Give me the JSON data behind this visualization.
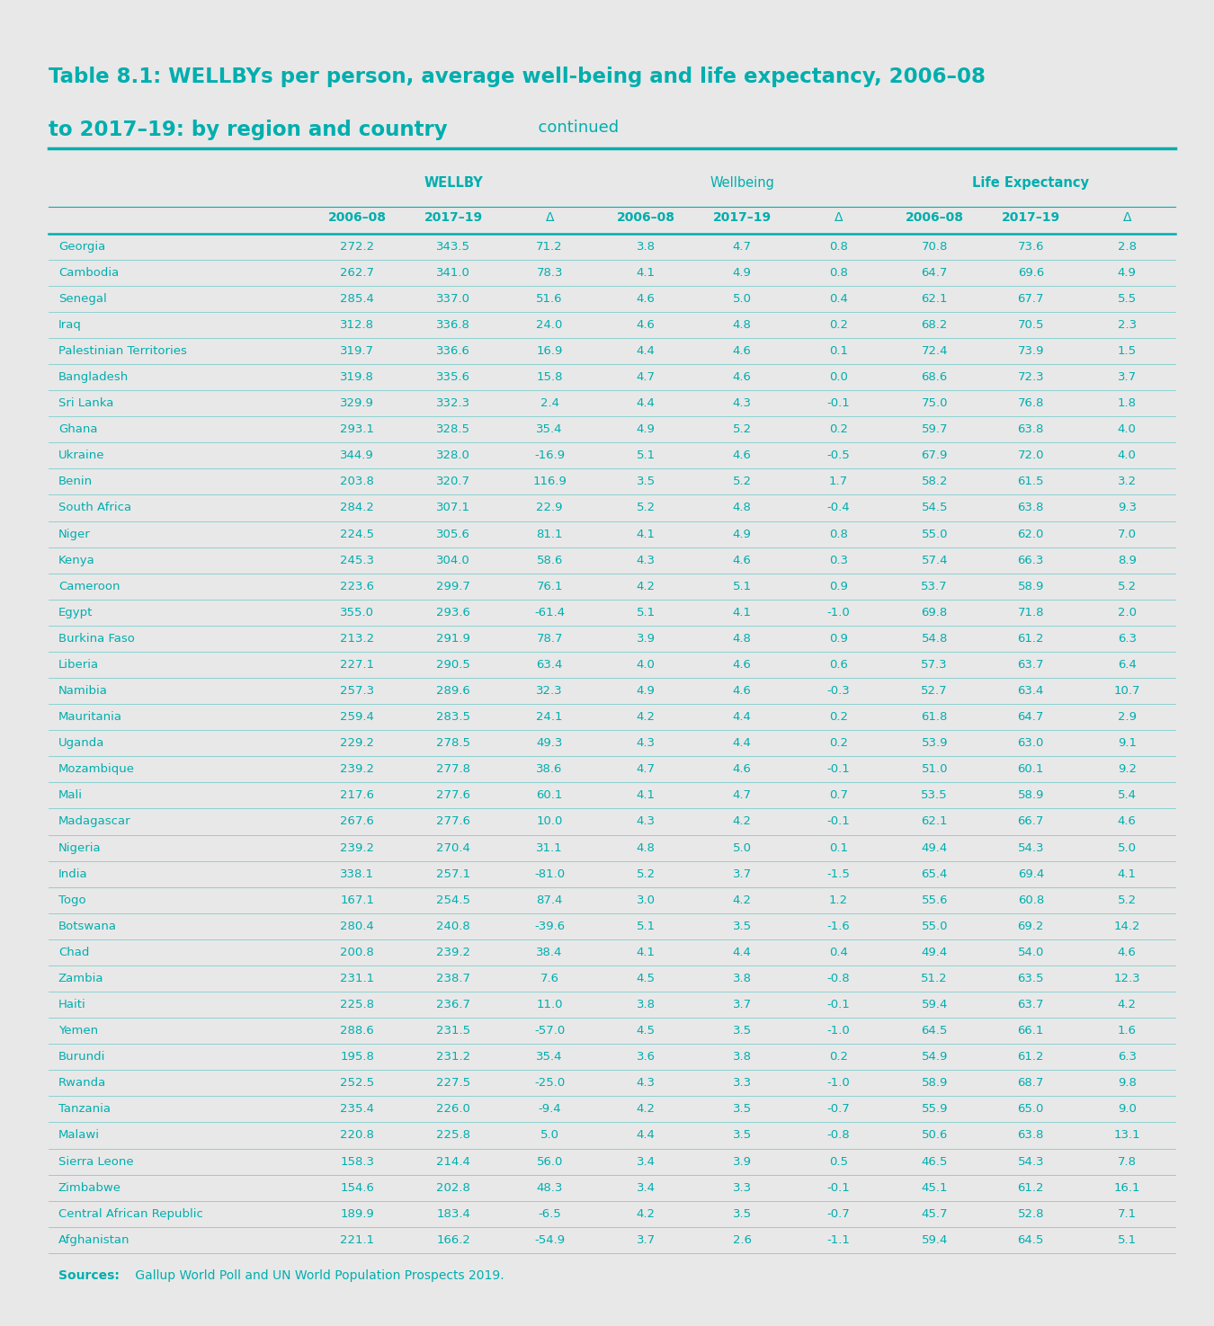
{
  "title_bold": "Table 8.1: WELLBYs per person, average well-being and life expectancy, 2006–08",
  "title_bold2": "to 2017–19: by region and country",
  "title_light": "  continued",
  "background_color": "#e8e8e8",
  "white_color": "#ffffff",
  "teal_color": "#00AEAE",
  "source_bold": "Sources:",
  "source_text": " Gallup World Poll and UN World Population Prospects 2019.",
  "rows": [
    [
      "Georgia",
      "272.2",
      "343.5",
      "71.2",
      "3.8",
      "4.7",
      "0.8",
      "70.8",
      "73.6",
      "2.8"
    ],
    [
      "Cambodia",
      "262.7",
      "341.0",
      "78.3",
      "4.1",
      "4.9",
      "0.8",
      "64.7",
      "69.6",
      "4.9"
    ],
    [
      "Senegal",
      "285.4",
      "337.0",
      "51.6",
      "4.6",
      "5.0",
      "0.4",
      "62.1",
      "67.7",
      "5.5"
    ],
    [
      "Iraq",
      "312.8",
      "336.8",
      "24.0",
      "4.6",
      "4.8",
      "0.2",
      "68.2",
      "70.5",
      "2.3"
    ],
    [
      "Palestinian Territories",
      "319.7",
      "336.6",
      "16.9",
      "4.4",
      "4.6",
      "0.1",
      "72.4",
      "73.9",
      "1.5"
    ],
    [
      "Bangladesh",
      "319.8",
      "335.6",
      "15.8",
      "4.7",
      "4.6",
      "0.0",
      "68.6",
      "72.3",
      "3.7"
    ],
    [
      "Sri Lanka",
      "329.9",
      "332.3",
      "2.4",
      "4.4",
      "4.3",
      "-0.1",
      "75.0",
      "76.8",
      "1.8"
    ],
    [
      "Ghana",
      "293.1",
      "328.5",
      "35.4",
      "4.9",
      "5.2",
      "0.2",
      "59.7",
      "63.8",
      "4.0"
    ],
    [
      "Ukraine",
      "344.9",
      "328.0",
      "-16.9",
      "5.1",
      "4.6",
      "-0.5",
      "67.9",
      "72.0",
      "4.0"
    ],
    [
      "Benin",
      "203.8",
      "320.7",
      "116.9",
      "3.5",
      "5.2",
      "1.7",
      "58.2",
      "61.5",
      "3.2"
    ],
    [
      "South Africa",
      "284.2",
      "307.1",
      "22.9",
      "5.2",
      "4.8",
      "-0.4",
      "54.5",
      "63.8",
      "9.3"
    ],
    [
      "Niger",
      "224.5",
      "305.6",
      "81.1",
      "4.1",
      "4.9",
      "0.8",
      "55.0",
      "62.0",
      "7.0"
    ],
    [
      "Kenya",
      "245.3",
      "304.0",
      "58.6",
      "4.3",
      "4.6",
      "0.3",
      "57.4",
      "66.3",
      "8.9"
    ],
    [
      "Cameroon",
      "223.6",
      "299.7",
      "76.1",
      "4.2",
      "5.1",
      "0.9",
      "53.7",
      "58.9",
      "5.2"
    ],
    [
      "Egypt",
      "355.0",
      "293.6",
      "-61.4",
      "5.1",
      "4.1",
      "-1.0",
      "69.8",
      "71.8",
      "2.0"
    ],
    [
      "Burkina Faso",
      "213.2",
      "291.9",
      "78.7",
      "3.9",
      "4.8",
      "0.9",
      "54.8",
      "61.2",
      "6.3"
    ],
    [
      "Liberia",
      "227.1",
      "290.5",
      "63.4",
      "4.0",
      "4.6",
      "0.6",
      "57.3",
      "63.7",
      "6.4"
    ],
    [
      "Namibia",
      "257.3",
      "289.6",
      "32.3",
      "4.9",
      "4.6",
      "-0.3",
      "52.7",
      "63.4",
      "10.7"
    ],
    [
      "Mauritania",
      "259.4",
      "283.5",
      "24.1",
      "4.2",
      "4.4",
      "0.2",
      "61.8",
      "64.7",
      "2.9"
    ],
    [
      "Uganda",
      "229.2",
      "278.5",
      "49.3",
      "4.3",
      "4.4",
      "0.2",
      "53.9",
      "63.0",
      "9.1"
    ],
    [
      "Mozambique",
      "239.2",
      "277.8",
      "38.6",
      "4.7",
      "4.6",
      "-0.1",
      "51.0",
      "60.1",
      "9.2"
    ],
    [
      "Mali",
      "217.6",
      "277.6",
      "60.1",
      "4.1",
      "4.7",
      "0.7",
      "53.5",
      "58.9",
      "5.4"
    ],
    [
      "Madagascar",
      "267.6",
      "277.6",
      "10.0",
      "4.3",
      "4.2",
      "-0.1",
      "62.1",
      "66.7",
      "4.6"
    ],
    [
      "Nigeria",
      "239.2",
      "270.4",
      "31.1",
      "4.8",
      "5.0",
      "0.1",
      "49.4",
      "54.3",
      "5.0"
    ],
    [
      "India",
      "338.1",
      "257.1",
      "-81.0",
      "5.2",
      "3.7",
      "-1.5",
      "65.4",
      "69.4",
      "4.1"
    ],
    [
      "Togo",
      "167.1",
      "254.5",
      "87.4",
      "3.0",
      "4.2",
      "1.2",
      "55.6",
      "60.8",
      "5.2"
    ],
    [
      "Botswana",
      "280.4",
      "240.8",
      "-39.6",
      "5.1",
      "3.5",
      "-1.6",
      "55.0",
      "69.2",
      "14.2"
    ],
    [
      "Chad",
      "200.8",
      "239.2",
      "38.4",
      "4.1",
      "4.4",
      "0.4",
      "49.4",
      "54.0",
      "4.6"
    ],
    [
      "Zambia",
      "231.1",
      "238.7",
      "7.6",
      "4.5",
      "3.8",
      "-0.8",
      "51.2",
      "63.5",
      "12.3"
    ],
    [
      "Haiti",
      "225.8",
      "236.7",
      "11.0",
      "3.8",
      "3.7",
      "-0.1",
      "59.4",
      "63.7",
      "4.2"
    ],
    [
      "Yemen",
      "288.6",
      "231.5",
      "-57.0",
      "4.5",
      "3.5",
      "-1.0",
      "64.5",
      "66.1",
      "1.6"
    ],
    [
      "Burundi",
      "195.8",
      "231.2",
      "35.4",
      "3.6",
      "3.8",
      "0.2",
      "54.9",
      "61.2",
      "6.3"
    ],
    [
      "Rwanda",
      "252.5",
      "227.5",
      "-25.0",
      "4.3",
      "3.3",
      "-1.0",
      "58.9",
      "68.7",
      "9.8"
    ],
    [
      "Tanzania",
      "235.4",
      "226.0",
      "-9.4",
      "4.2",
      "3.5",
      "-0.7",
      "55.9",
      "65.0",
      "9.0"
    ],
    [
      "Malawi",
      "220.8",
      "225.8",
      "5.0",
      "4.4",
      "3.5",
      "-0.8",
      "50.6",
      "63.8",
      "13.1"
    ],
    [
      "Sierra Leone",
      "158.3",
      "214.4",
      "56.0",
      "3.4",
      "3.9",
      "0.5",
      "46.5",
      "54.3",
      "7.8"
    ],
    [
      "Zimbabwe",
      "154.6",
      "202.8",
      "48.3",
      "3.4",
      "3.3",
      "-0.1",
      "45.1",
      "61.2",
      "16.1"
    ],
    [
      "Central African Republic",
      "189.9",
      "183.4",
      "-6.5",
      "4.2",
      "3.5",
      "-0.7",
      "45.7",
      "52.8",
      "7.1"
    ],
    [
      "Afghanistan",
      "221.1",
      "166.2",
      "-54.9",
      "3.7",
      "2.6",
      "-1.1",
      "59.4",
      "64.5",
      "5.1"
    ]
  ]
}
